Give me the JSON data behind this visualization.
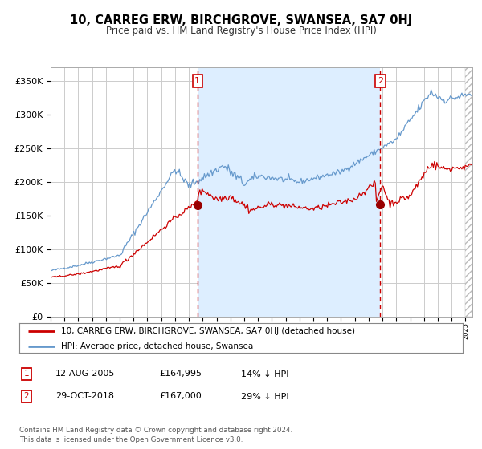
{
  "title": "10, CARREG ERW, BIRCHGROVE, SWANSEA, SA7 0HJ",
  "subtitle": "Price paid vs. HM Land Registry's House Price Index (HPI)",
  "background_color": "#ffffff",
  "plot_bg_color": "#ffffff",
  "grid_color": "#cccccc",
  "hpi_color": "#6699cc",
  "price_color": "#cc0000",
  "marker_color": "#990000",
  "vline_color": "#cc0000",
  "span_color": "#ddeeff",
  "hatch_color": "#bbbbbb",
  "sale1_date_num": 2005.62,
  "sale1_price": 164995,
  "sale2_date_num": 2018.83,
  "sale2_price": 167000,
  "legend_text1": "10, CARREG ERW, BIRCHGROVE, SWANSEA, SA7 0HJ (detached house)",
  "legend_text2": "HPI: Average price, detached house, Swansea",
  "table_row1": [
    "1",
    "12-AUG-2005",
    "£164,995",
    "14% ↓ HPI"
  ],
  "table_row2": [
    "2",
    "29-OCT-2018",
    "£167,000",
    "29% ↓ HPI"
  ],
  "footer": "Contains HM Land Registry data © Crown copyright and database right 2024.\nThis data is licensed under the Open Government Licence v3.0.",
  "ylim": [
    0,
    370000
  ],
  "xlim_start": 1995.0,
  "xlim_end": 2025.5,
  "hatch_start": 2025.0
}
